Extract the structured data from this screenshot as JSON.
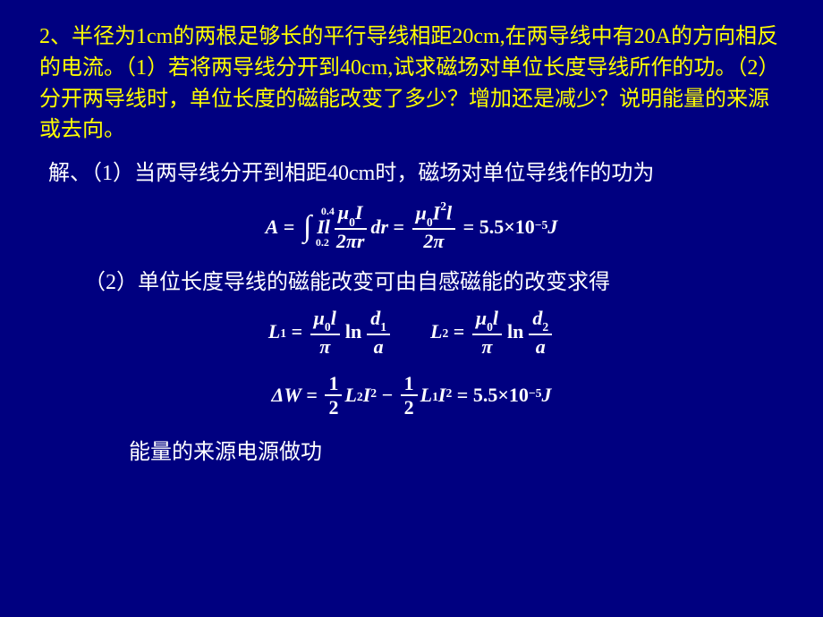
{
  "problem": "2、半径为1cm的两根足够长的平行导线相距20cm,在两导线中有20A的方向相反 的电流。（1）若将两导线分开到40cm,试求磁场对单位长度导线所作的功。（2）分开两导线时，单位长度的磁能改变了多少？增加还是减少？说明能量的来源或去向。",
  "solution1": "解、（1）当两导线分开到相距40cm时，磁场对单位导线作的功为",
  "solution2": "（2）单位长度导线的磁能改变可由自感磁能的改变求得",
  "conclusion": "能量的来源电源做功",
  "eq1": {
    "lhs": "A",
    "int_upper": "0.4",
    "int_lower": "0.2",
    "integrand_coef": "Il",
    "frac_num": "μ",
    "frac_num_sub": "0",
    "frac_num_tail": "I",
    "frac_den": "2πr",
    "dvar": "dr",
    "mid_num": "μ",
    "mid_sub": "0",
    "mid_tail": "I",
    "mid_sup": "2",
    "mid_tail2": "l",
    "mid_den": "2π",
    "result": "5.5×10",
    "result_exp": "−5",
    "unit": "J"
  },
  "eqL1": {
    "lhs": "L",
    "lhs_sub": "1",
    "coef_num": "μ",
    "coef_sub": "0",
    "coef_tail": "l",
    "coef_den": "π",
    "ln": "ln",
    "arg_num": "d",
    "arg_num_sub": "1",
    "arg_den": "a"
  },
  "eqL2": {
    "lhs": "L",
    "lhs_sub": "2",
    "coef_num": "μ",
    "coef_sub": "0",
    "coef_tail": "l",
    "coef_den": "π",
    "ln": "ln",
    "arg_num": "d",
    "arg_num_sub": "2",
    "arg_den": "a"
  },
  "eqDW": {
    "lhs": "ΔW",
    "half_num": "1",
    "half_den": "2",
    "t1": "L",
    "t1_sub": "2",
    "t1_i": "I",
    "t1_exp": "2",
    "t2": "L",
    "t2_sub": "1",
    "t2_i": "I",
    "t2_exp": "2",
    "result": "5.5×10",
    "result_exp": "−5",
    "unit": "J"
  },
  "colors": {
    "background": "#000080",
    "problem_text": "#ffff00",
    "body_text": "#ffffff"
  },
  "typography": {
    "chinese_fontsize_pt": 18,
    "equation_fontsize_pt": 16,
    "equation_weight": "bold"
  }
}
